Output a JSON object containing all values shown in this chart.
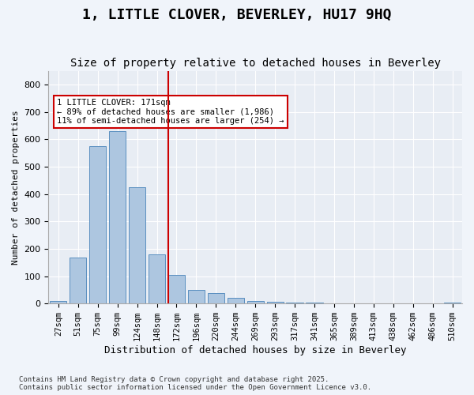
{
  "title": "1, LITTLE CLOVER, BEVERLEY, HU17 9HQ",
  "subtitle": "Size of property relative to detached houses in Beverley",
  "xlabel": "Distribution of detached houses by size in Beverley",
  "ylabel": "Number of detached properties",
  "footnote": "Contains HM Land Registry data © Crown copyright and database right 2025.\nContains public sector information licensed under the Open Government Licence v3.0.",
  "bar_labels": [
    "27sqm",
    "51sqm",
    "75sqm",
    "99sqm",
    "124sqm",
    "148sqm",
    "172sqm",
    "196sqm",
    "220sqm",
    "244sqm",
    "269sqm",
    "293sqm",
    "317sqm",
    "341sqm",
    "365sqm",
    "389sqm",
    "413sqm",
    "438sqm",
    "462sqm",
    "486sqm",
    "510sqm"
  ],
  "bar_values": [
    10,
    168,
    575,
    630,
    425,
    180,
    105,
    50,
    38,
    20,
    8,
    5,
    4,
    4,
    2,
    0,
    0,
    0,
    0,
    0,
    3
  ],
  "bar_color": "#adc6e0",
  "bar_edge_color": "#5a8fc0",
  "vline_x_index": 6,
  "vline_color": "#cc0000",
  "annotation_text": "1 LITTLE CLOVER: 171sqm\n← 89% of detached houses are smaller (1,986)\n11% of semi-detached houses are larger (254) →",
  "annotation_box_color": "#ffffff",
  "annotation_box_edge": "#cc0000",
  "ylim": [
    0,
    850
  ],
  "yticks": [
    0,
    100,
    200,
    300,
    400,
    500,
    600,
    700,
    800
  ],
  "plot_bg_color": "#e8edf4",
  "fig_bg_color": "#f0f4fa",
  "title_fontsize": 13,
  "subtitle_fontsize": 10
}
